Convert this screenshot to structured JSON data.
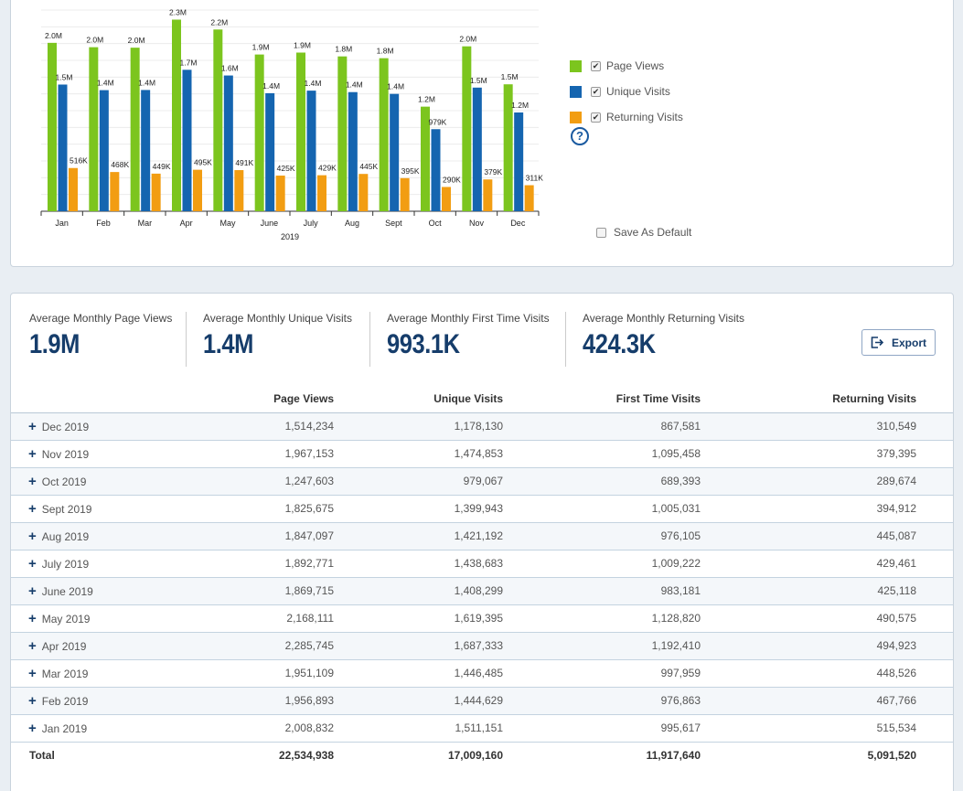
{
  "chart_data": {
    "type": "bar",
    "xlabel": "2019",
    "categories": [
      "Jan",
      "Feb",
      "Mar",
      "Apr",
      "May",
      "June",
      "July",
      "Aug",
      "Sept",
      "Oct",
      "Nov",
      "Dec"
    ],
    "ylim": [
      0,
      2400000
    ],
    "grid": true,
    "legend_position": "right",
    "series": [
      {
        "name": "Page Views",
        "color": "#7cc51e",
        "values": [
          2008832,
          1956893,
          1951109,
          2285745,
          2168111,
          1869715,
          1892771,
          1847097,
          1825675,
          1247603,
          1967153,
          1514234
        ],
        "labels": [
          "2.0M",
          "2.0M",
          "2.0M",
          "2.3M",
          "2.2M",
          "1.9M",
          "1.9M",
          "1.8M",
          "1.8M",
          "1.2M",
          "2.0M",
          "1.5M"
        ]
      },
      {
        "name": "Unique Visits",
        "color": "#1565b0",
        "values": [
          1511151,
          1444629,
          1446485,
          1687333,
          1619395,
          1408299,
          1438683,
          1421192,
          1399943,
          979067,
          1474853,
          1178130
        ],
        "labels": [
          "1.5M",
          "1.4M",
          "1.4M",
          "1.7M",
          "1.6M",
          "1.4M",
          "1.4M",
          "1.4M",
          "1.4M",
          "979K",
          "1.5M",
          "1.2M"
        ]
      },
      {
        "name": "Returning Visits",
        "color": "#f29d12",
        "values": [
          515534,
          467766,
          448526,
          494923,
          490575,
          425118,
          429461,
          445087,
          394912,
          289674,
          379395,
          310549
        ],
        "labels": [
          "516K",
          "468K",
          "449K",
          "495K",
          "491K",
          "425K",
          "429K",
          "445K",
          "395K",
          "290K",
          "379K",
          "311K"
        ]
      }
    ]
  },
  "legend": [
    {
      "label": "Page Views",
      "color": "#7cc51e",
      "checked": true
    },
    {
      "label": "Unique Visits",
      "color": "#1565b0",
      "checked": true
    },
    {
      "label": "Returning Visits",
      "color": "#f29d12",
      "checked": true
    }
  ],
  "help_icon": "?",
  "save_default": {
    "label": "Save As Default",
    "checked": false
  },
  "stats": [
    {
      "label": "Average Monthly Page Views",
      "value": "1.9M"
    },
    {
      "label": "Average Monthly Unique Visits",
      "value": "1.4M"
    },
    {
      "label": "Average Monthly First Time Visits",
      "value": "993.1K"
    },
    {
      "label": "Average Monthly Returning Visits",
      "value": "424.3K"
    }
  ],
  "export_label": "Export",
  "table": {
    "headers": [
      "",
      "Page Views",
      "Unique Visits",
      "First Time Visits",
      "Returning Visits"
    ],
    "expand_symbol": "+",
    "rows": [
      [
        "Dec 2019",
        "1,514,234",
        "1,178,130",
        "867,581",
        "310,549"
      ],
      [
        "Nov 2019",
        "1,967,153",
        "1,474,853",
        "1,095,458",
        "379,395"
      ],
      [
        "Oct 2019",
        "1,247,603",
        "979,067",
        "689,393",
        "289,674"
      ],
      [
        "Sept 2019",
        "1,825,675",
        "1,399,943",
        "1,005,031",
        "394,912"
      ],
      [
        "Aug 2019",
        "1,847,097",
        "1,421,192",
        "976,105",
        "445,087"
      ],
      [
        "July 2019",
        "1,892,771",
        "1,438,683",
        "1,009,222",
        "429,461"
      ],
      [
        "June 2019",
        "1,869,715",
        "1,408,299",
        "983,181",
        "425,118"
      ],
      [
        "May 2019",
        "2,168,111",
        "1,619,395",
        "1,128,820",
        "490,575"
      ],
      [
        "Apr 2019",
        "2,285,745",
        "1,687,333",
        "1,192,410",
        "494,923"
      ],
      [
        "Mar 2019",
        "1,951,109",
        "1,446,485",
        "997,959",
        "448,526"
      ],
      [
        "Feb 2019",
        "1,956,893",
        "1,444,629",
        "976,863",
        "467,766"
      ],
      [
        "Jan 2019",
        "2,008,832",
        "1,511,151",
        "995,617",
        "515,534"
      ]
    ],
    "total": [
      "Total",
      "22,534,938",
      "17,009,160",
      "11,917,640",
      "5,091,520"
    ]
  }
}
